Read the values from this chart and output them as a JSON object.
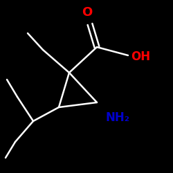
{
  "background_color": "#000000",
  "bond_color": "#ffffff",
  "O_color": "#ff0000",
  "N_color": "#0000cd",
  "O_label": "O",
  "OH_label": "OH",
  "NH2_label": "NH₂",
  "line_width": 1.8,
  "font_size": 11,
  "figsize": [
    2.5,
    2.5
  ],
  "dpi": 100
}
